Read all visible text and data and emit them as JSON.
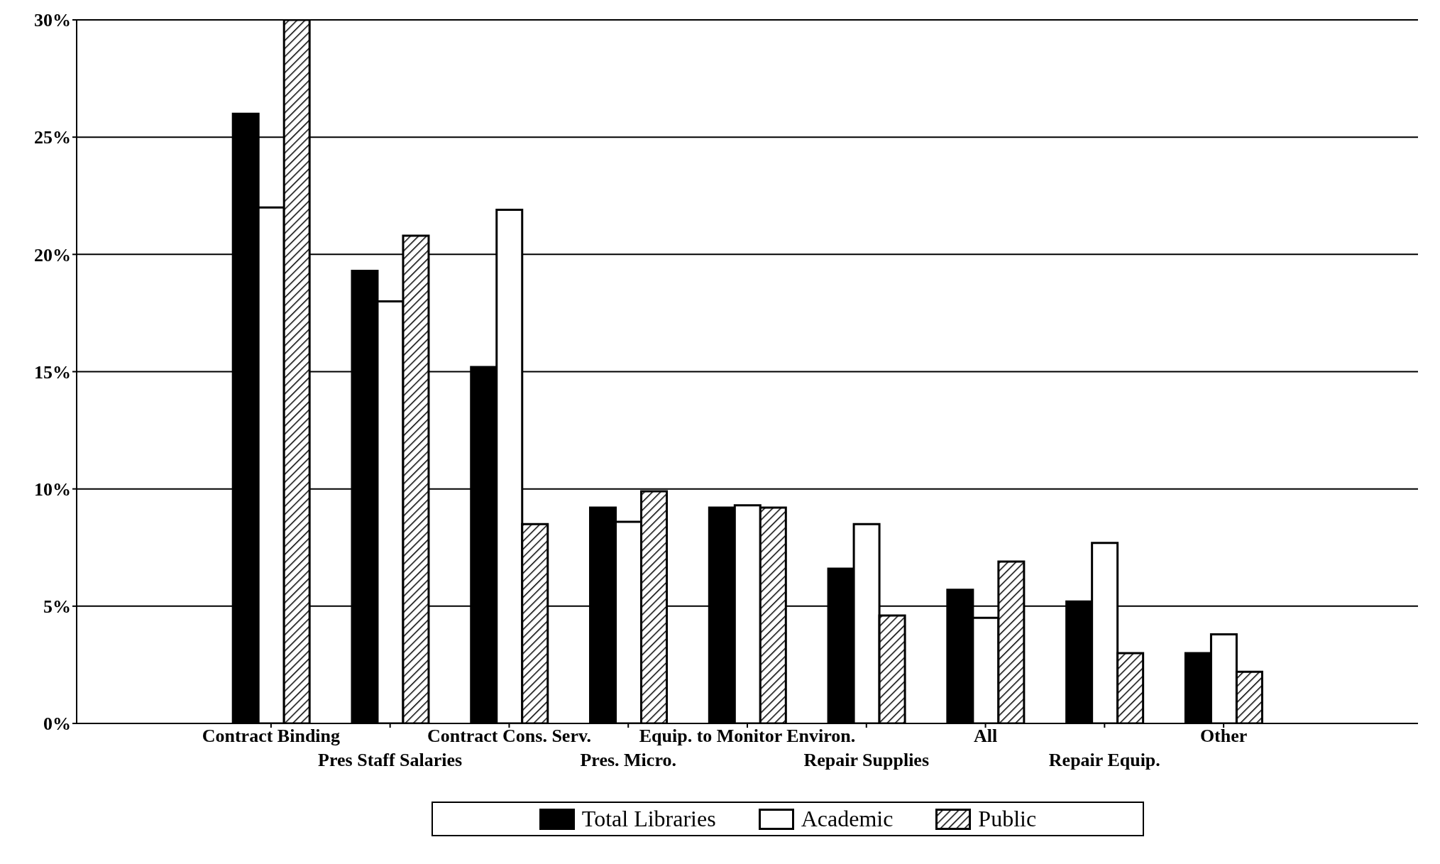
{
  "chart_data": {
    "type": "bar",
    "categories": [
      "Contract Binding",
      "Pres Staff Salaries",
      "Contract Cons. Serv.",
      "Pres. Micro.",
      "Equip. to Monitor Environ.",
      "Repair Supplies",
      "All",
      "Repair Equip.",
      "Other"
    ],
    "series": [
      {
        "name": "Total Libraries",
        "color": "#000000",
        "values": [
          26,
          19.3,
          15.2,
          9.2,
          9.2,
          6.6,
          5.7,
          5.2,
          3.0
        ]
      },
      {
        "name": "Academic",
        "color": "#ffffff",
        "values": [
          22,
          18,
          21.9,
          8.6,
          9.3,
          8.5,
          4.5,
          7.7,
          3.8
        ]
      },
      {
        "name": "Public",
        "color": "#000000",
        "values": [
          30,
          20.8,
          8.5,
          9.9,
          9.2,
          4.6,
          6.9,
          3.0,
          2.2
        ]
      }
    ],
    "ylim": [
      0,
      30
    ],
    "yticks": [
      {
        "value": 0,
        "label": "0%"
      },
      {
        "value": 5,
        "label": "5%"
      },
      {
        "value": 10,
        "label": "10%"
      },
      {
        "value": 15,
        "label": "15%"
      },
      {
        "value": 20,
        "label": "20%"
      },
      {
        "value": 25,
        "label": "25%"
      },
      {
        "value": 30,
        "label": "30%"
      }
    ],
    "grid": "y",
    "legend": "bottom"
  }
}
